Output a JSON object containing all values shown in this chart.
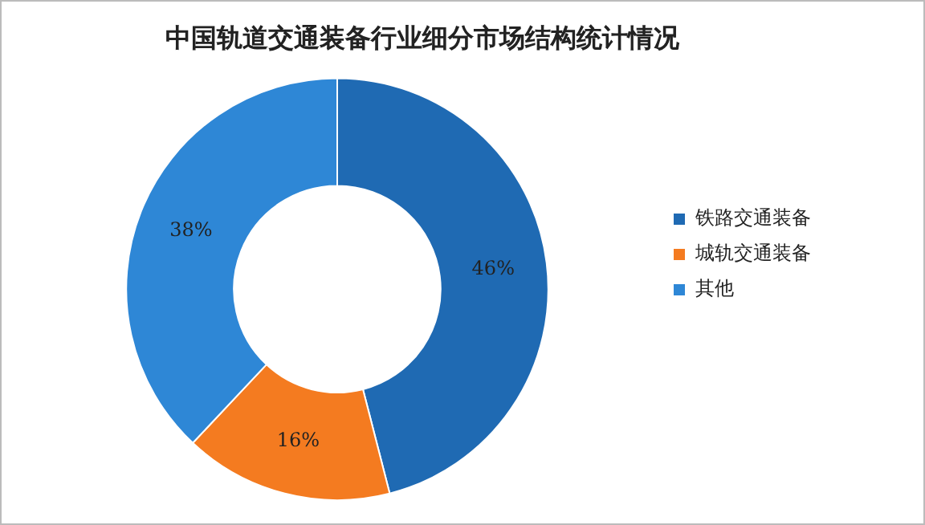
{
  "chart_data": {
    "type": "donut",
    "title": "中国轨道交通装备行业细分市场结构统计情况",
    "categories": [
      "铁路交通装备",
      "城轨交通装备",
      "其他"
    ],
    "values": [
      46,
      16,
      38
    ],
    "value_labels": [
      "46%",
      "16%",
      "38%"
    ],
    "colors": [
      "#1f6ab3",
      "#f47b20",
      "#2e87d6"
    ],
    "legend": "right"
  }
}
